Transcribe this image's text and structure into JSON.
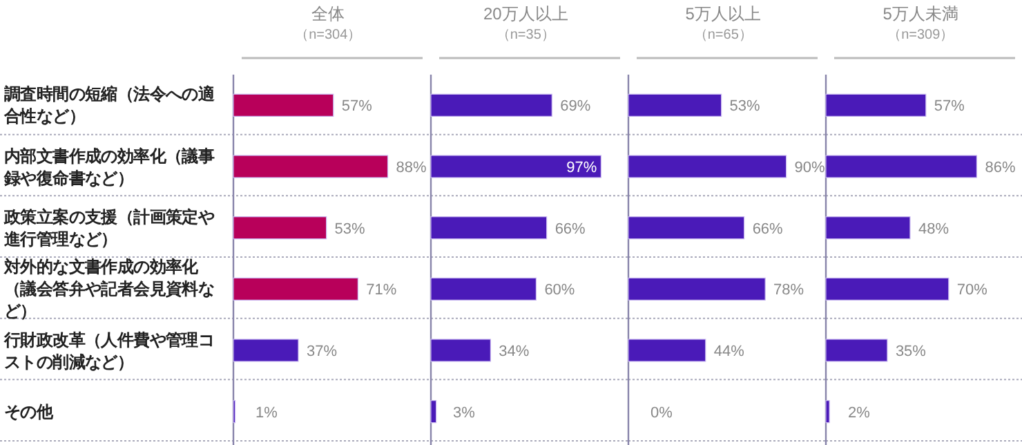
{
  "chart_data": [
    {
      "type": "bar",
      "orientation": "horizontal",
      "title": "全体",
      "subtitle": "（n=304）",
      "categories": [
        "調査時間の短縮（法令への適合性など）",
        "内部文書作成の効率化（議事録や復命書など）",
        "政策立案の支援（計画策定や進行管理など）",
        "対外的な文書作成の効率化（議会答弁や記者会見資料など）",
        "行財政改革（人件費や管理コストの削減など）",
        "その他"
      ],
      "values": [
        57,
        88,
        53,
        71,
        37,
        1
      ],
      "value_labels": [
        "57%",
        "88%",
        "53%",
        "71%",
        "37%",
        "1%"
      ],
      "colors": [
        "#b8005a",
        "#b8005a",
        "#b8005a",
        "#b8005a",
        "#4a1ab8",
        "#4a1ab8"
      ],
      "tick_labels": "y",
      "grid": "y"
    },
    {
      "type": "bar",
      "orientation": "horizontal",
      "title": "20万人以上",
      "subtitle": "（n=35）",
      "values": [
        69,
        97,
        66,
        60,
        34,
        3
      ],
      "value_labels": [
        "69%",
        "97%",
        "66%",
        "60%",
        "34%",
        "3%"
      ],
      "color": "#4a1ab8",
      "tick_labels": false,
      "grid": "y"
    },
    {
      "type": "bar",
      "orientation": "horizontal",
      "title": "5万人以上",
      "subtitle": "（n=65）",
      "values": [
        53,
        90,
        66,
        78,
        44,
        0
      ],
      "value_labels": [
        "53%",
        "90%",
        "66%",
        "78%",
        "44%",
        "0%"
      ],
      "color": "#4a1ab8",
      "tick_labels": false,
      "grid": "y"
    },
    {
      "type": "bar",
      "orientation": "horizontal",
      "title": "5万人未満",
      "subtitle": "（n=309）",
      "values": [
        57,
        86,
        48,
        70,
        35,
        2
      ],
      "value_labels": [
        "57%",
        "86%",
        "48%",
        "70%",
        "35%",
        "2%"
      ],
      "color": "#4a1ab8",
      "tick_labels": false,
      "grid": "y"
    }
  ]
}
